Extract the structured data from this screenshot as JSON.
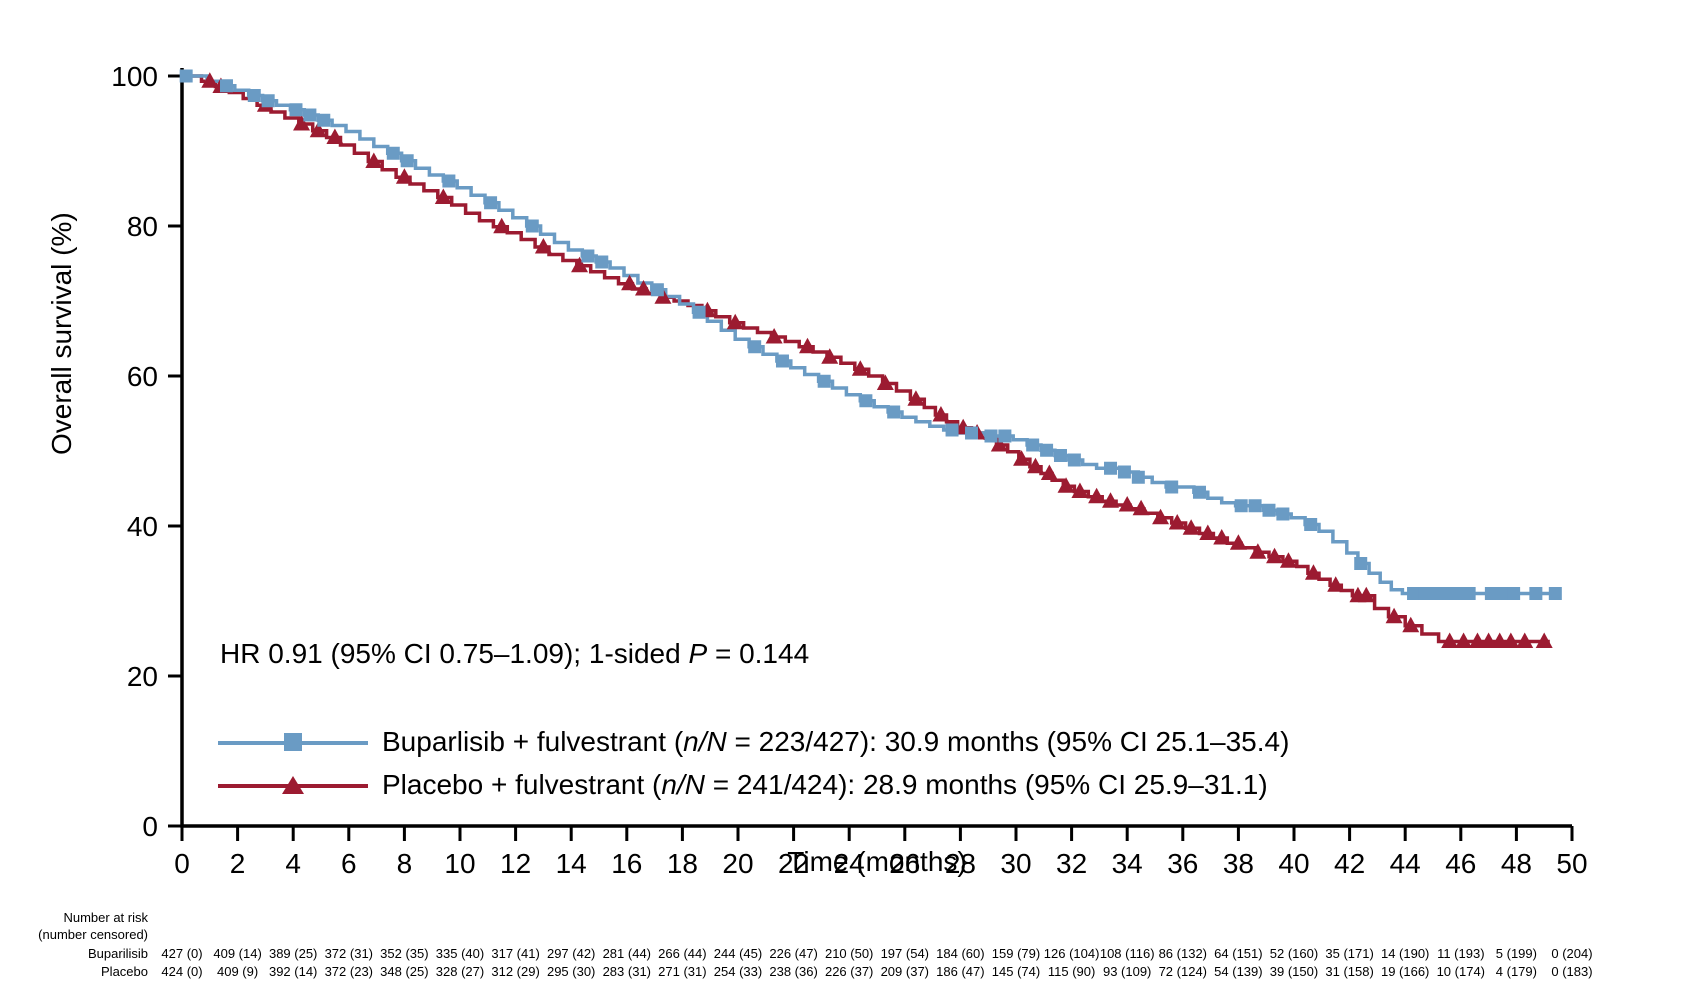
{
  "chart_data": {
    "type": "line",
    "subtype": "kaplan-meier-step-curves",
    "title": "",
    "xlabel": "Time (months)",
    "ylabel": "Overall survival (%)",
    "xlim": [
      0,
      50
    ],
    "ylim": [
      0,
      100
    ],
    "xticks": [
      0,
      2,
      4,
      6,
      8,
      10,
      12,
      14,
      16,
      18,
      20,
      22,
      24,
      26,
      28,
      30,
      32,
      34,
      36,
      38,
      40,
      42,
      44,
      46,
      48,
      50
    ],
    "yticks": [
      0,
      20,
      40,
      60,
      80,
      100
    ],
    "grid": false,
    "legend_position": "lower-left-inside",
    "annotation": {
      "pre": "HR 0.91 (95% CI 0.75–1.09); 1-sided ",
      "italic": "P",
      "post": " = 0.144"
    },
    "series": [
      {
        "name": "Buparlisib + fulvestrant",
        "color": "#6a9bc4",
        "marker": "square",
        "label_pre": "Buparlisib + fulvestrant (",
        "label_italic": "n/N",
        "label_post": " = 223/427): 30.9 months (95% CI 25.1–35.4)",
        "events_n_N": "223/427",
        "median_months": 30.9,
        "median_ci": "25.1–35.4",
        "steps": [
          [
            0,
            100
          ],
          [
            0.9,
            99.3
          ],
          [
            1.4,
            98.7
          ],
          [
            1.9,
            98.1
          ],
          [
            2.4,
            97.4
          ],
          [
            2.9,
            96.7
          ],
          [
            3.4,
            96.1
          ],
          [
            3.9,
            95.5
          ],
          [
            4.4,
            94.8
          ],
          [
            4.9,
            94.1
          ],
          [
            5.4,
            93.4
          ],
          [
            5.9,
            92.6
          ],
          [
            6.4,
            91.6
          ],
          [
            6.9,
            90.6
          ],
          [
            7.4,
            89.7
          ],
          [
            7.9,
            88.7
          ],
          [
            8.4,
            87.7
          ],
          [
            8.9,
            86.8
          ],
          [
            9.4,
            86.0
          ],
          [
            9.9,
            85.1
          ],
          [
            10.4,
            84.1
          ],
          [
            10.9,
            83.1
          ],
          [
            11.4,
            82.1
          ],
          [
            11.9,
            81.1
          ],
          [
            12.4,
            80.0
          ],
          [
            12.9,
            78.9
          ],
          [
            13.4,
            77.8
          ],
          [
            13.9,
            76.8
          ],
          [
            14.4,
            76.0
          ],
          [
            14.9,
            75.2
          ],
          [
            15.4,
            74.4
          ],
          [
            15.9,
            73.4
          ],
          [
            16.4,
            72.4
          ],
          [
            16.9,
            71.5
          ],
          [
            17.4,
            70.6
          ],
          [
            17.9,
            69.6
          ],
          [
            18.4,
            68.5
          ],
          [
            18.9,
            67.3
          ],
          [
            19.4,
            66.1
          ],
          [
            19.9,
            64.9
          ],
          [
            20.4,
            63.9
          ],
          [
            20.9,
            62.9
          ],
          [
            21.4,
            62.0
          ],
          [
            21.9,
            61.1
          ],
          [
            22.4,
            60.2
          ],
          [
            22.9,
            59.3
          ],
          [
            23.4,
            58.4
          ],
          [
            23.9,
            57.5
          ],
          [
            24.4,
            56.7
          ],
          [
            24.9,
            55.9
          ],
          [
            25.4,
            55.2
          ],
          [
            25.9,
            54.5
          ],
          [
            26.4,
            53.9
          ],
          [
            26.9,
            53.3
          ],
          [
            27.4,
            52.8
          ],
          [
            27.9,
            52.4
          ],
          [
            28.9,
            52.0
          ],
          [
            29.9,
            51.5
          ],
          [
            30.4,
            50.8
          ],
          [
            30.9,
            50.1
          ],
          [
            31.4,
            49.4
          ],
          [
            31.9,
            48.8
          ],
          [
            32.4,
            48.2
          ],
          [
            32.9,
            47.7
          ],
          [
            33.9,
            47.2
          ],
          [
            34.4,
            46.5
          ],
          [
            34.9,
            45.8
          ],
          [
            35.4,
            45.2
          ],
          [
            36.4,
            44.5
          ],
          [
            36.9,
            43.7
          ],
          [
            37.4,
            43.1
          ],
          [
            37.9,
            42.7
          ],
          [
            38.9,
            42.1
          ],
          [
            39.4,
            41.6
          ],
          [
            39.9,
            41.1
          ],
          [
            40.4,
            40.2
          ],
          [
            40.9,
            39.3
          ],
          [
            41.4,
            37.9
          ],
          [
            41.9,
            36.4
          ],
          [
            42.3,
            35.0
          ],
          [
            42.7,
            33.7
          ],
          [
            43.1,
            32.5
          ],
          [
            43.5,
            31.5
          ],
          [
            43.9,
            31.0
          ],
          [
            49.4,
            31.0
          ]
        ],
        "censor_times": [
          0.15,
          1.6,
          2.6,
          3.1,
          4.1,
          4.6,
          5.1,
          7.6,
          8.1,
          9.6,
          11.1,
          12.6,
          14.6,
          15.1,
          17.1,
          18.6,
          20.6,
          21.6,
          23.1,
          24.6,
          25.6,
          27.7,
          28.4,
          29.1,
          29.6,
          30.6,
          31.1,
          31.6,
          32.1,
          33.4,
          33.9,
          34.4,
          35.6,
          36.6,
          38.1,
          38.6,
          39.1,
          39.6,
          40.6,
          42.4,
          44.3,
          44.7,
          45.1,
          45.5,
          45.9,
          46.3,
          47.1,
          47.5,
          47.9,
          48.7,
          49.4
        ]
      },
      {
        "name": "Placebo + fulvestrant",
        "color": "#9c1b31",
        "marker": "triangle-up",
        "label_pre": "Placebo + fulvestrant (",
        "label_italic": "n/N",
        "label_post": " = 241/424): 28.9 months (95% CI 25.9–31.1)",
        "events_n_N": "241/424",
        "median_months": 28.9,
        "median_ci": "25.9–31.1",
        "steps": [
          [
            0,
            100
          ],
          [
            0.7,
            99.3
          ],
          [
            1.2,
            98.6
          ],
          [
            1.7,
            97.8
          ],
          [
            2.2,
            97.0
          ],
          [
            2.7,
            96.1
          ],
          [
            3.2,
            95.2
          ],
          [
            3.7,
            94.4
          ],
          [
            4.2,
            93.6
          ],
          [
            4.7,
            92.7
          ],
          [
            5.2,
            91.8
          ],
          [
            5.7,
            90.8
          ],
          [
            6.2,
            89.7
          ],
          [
            6.7,
            88.6
          ],
          [
            7.2,
            87.5
          ],
          [
            7.7,
            86.5
          ],
          [
            8.2,
            85.6
          ],
          [
            8.7,
            84.7
          ],
          [
            9.2,
            83.8
          ],
          [
            9.7,
            82.8
          ],
          [
            10.2,
            81.7
          ],
          [
            10.7,
            80.7
          ],
          [
            11.2,
            79.9
          ],
          [
            11.7,
            79.1
          ],
          [
            12.2,
            78.2
          ],
          [
            12.7,
            77.2
          ],
          [
            13.2,
            76.2
          ],
          [
            13.7,
            75.4
          ],
          [
            14.2,
            74.7
          ],
          [
            14.7,
            73.9
          ],
          [
            15.2,
            73.1
          ],
          [
            15.7,
            72.3
          ],
          [
            16.2,
            71.6
          ],
          [
            16.7,
            71.0
          ],
          [
            17.2,
            70.5
          ],
          [
            17.7,
            70.0
          ],
          [
            18.2,
            69.4
          ],
          [
            18.7,
            68.7
          ],
          [
            19.2,
            67.9
          ],
          [
            19.7,
            67.1
          ],
          [
            20.2,
            66.4
          ],
          [
            20.7,
            65.8
          ],
          [
            21.2,
            65.2
          ],
          [
            21.7,
            64.6
          ],
          [
            22.2,
            63.9
          ],
          [
            22.7,
            63.2
          ],
          [
            23.2,
            62.5
          ],
          [
            23.7,
            61.7
          ],
          [
            24.2,
            60.9
          ],
          [
            24.7,
            60.0
          ],
          [
            25.2,
            59.0
          ],
          [
            25.7,
            58.0
          ],
          [
            26.2,
            56.9
          ],
          [
            26.7,
            55.8
          ],
          [
            27.1,
            54.8
          ],
          [
            27.5,
            53.9
          ],
          [
            27.9,
            53.1
          ],
          [
            28.4,
            52.4
          ],
          [
            28.9,
            51.7
          ],
          [
            29.3,
            50.8
          ],
          [
            29.7,
            49.9
          ],
          [
            30.1,
            48.9
          ],
          [
            30.5,
            47.9
          ],
          [
            30.9,
            47.0
          ],
          [
            31.3,
            46.1
          ],
          [
            31.7,
            45.3
          ],
          [
            32.1,
            44.6
          ],
          [
            32.6,
            43.9
          ],
          [
            33.1,
            43.3
          ],
          [
            33.6,
            42.8
          ],
          [
            34.1,
            42.3
          ],
          [
            34.6,
            41.7
          ],
          [
            35.1,
            41.1
          ],
          [
            35.6,
            40.4
          ],
          [
            36.1,
            39.7
          ],
          [
            36.6,
            39.0
          ],
          [
            37.1,
            38.4
          ],
          [
            37.6,
            37.7
          ],
          [
            38.1,
            37.1
          ],
          [
            38.6,
            36.5
          ],
          [
            39.1,
            35.9
          ],
          [
            39.6,
            35.3
          ],
          [
            40.1,
            34.6
          ],
          [
            40.5,
            33.7
          ],
          [
            40.9,
            32.9
          ],
          [
            41.3,
            32.1
          ],
          [
            41.7,
            31.4
          ],
          [
            42.1,
            30.7
          ],
          [
            42.9,
            29.0
          ],
          [
            43.4,
            27.9
          ],
          [
            44.0,
            26.7
          ],
          [
            44.6,
            25.6
          ],
          [
            45.2,
            24.6
          ],
          [
            49.2,
            24.6
          ]
        ],
        "censor_times": [
          1.0,
          1.4,
          3.0,
          4.3,
          4.9,
          5.5,
          6.9,
          8.0,
          9.4,
          11.5,
          13.0,
          14.3,
          16.1,
          16.6,
          17.3,
          18.9,
          19.9,
          21.3,
          22.5,
          23.3,
          24.4,
          25.3,
          26.4,
          27.3,
          28.1,
          28.6,
          29.4,
          30.2,
          30.7,
          31.2,
          31.8,
          32.3,
          32.9,
          33.4,
          34.0,
          34.5,
          35.2,
          35.8,
          36.3,
          36.9,
          37.4,
          38.0,
          38.7,
          39.3,
          39.8,
          40.7,
          41.5,
          42.3,
          42.6,
          43.6,
          44.2,
          45.6,
          46.1,
          46.6,
          47.0,
          47.4,
          47.8,
          48.3,
          49.0
        ]
      }
    ]
  },
  "risk_table": {
    "header_line1": "Number at risk",
    "header_line2": "(number censored)",
    "rows": [
      {
        "label": "Buparilisib",
        "values": [
          "427 (0)",
          "409 (14)",
          "389 (25)",
          "372 (31)",
          "352 (35)",
          "335 (40)",
          "317 (41)",
          "297 (42)",
          "281 (44)",
          "266 (44)",
          "244 (45)",
          "226 (47)",
          "210 (50)",
          "197 (54)",
          "184 (60)",
          "159 (79)",
          "126 (104)",
          "108 (116)",
          "86 (132)",
          "64 (151)",
          "52 (160)",
          "35 (171)",
          "14 (190)",
          "11 (193)",
          "5 (199)",
          "0 (204)"
        ]
      },
      {
        "label": "Placebo",
        "values": [
          "424 (0)",
          "409 (9)",
          "392 (14)",
          "372 (23)",
          "348 (25)",
          "328 (27)",
          "312 (29)",
          "295 (30)",
          "283 (31)",
          "271 (31)",
          "254 (33)",
          "238 (36)",
          "226 (37)",
          "209 (37)",
          "186 (47)",
          "145 (74)",
          "115 (90)",
          "93 (109)",
          "72 (124)",
          "54 (139)",
          "39 (150)",
          "31 (158)",
          "19 (166)",
          "10 (174)",
          "4 (179)",
          "0 (183)"
        ]
      }
    ]
  },
  "colors": {
    "buparlisib": "#6a9bc4",
    "placebo": "#9c1b31",
    "axis": "#000000",
    "background": "#ffffff"
  }
}
